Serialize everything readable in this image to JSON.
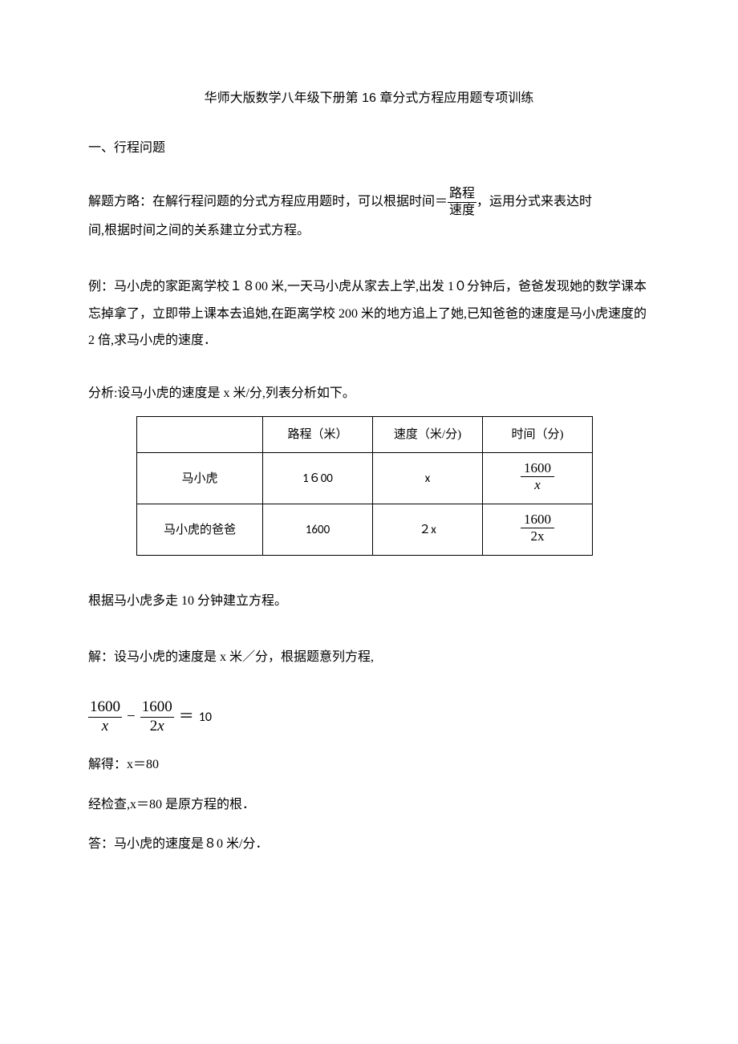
{
  "title": "华师大版数学八年级下册第 16 章分式方程应用题专项训练",
  "section": "一、行程问题",
  "strategy": {
    "lead": "解题方略：在解行程问题的分式方程应用题时，可以根据时间＝",
    "frac_num": "路程",
    "frac_den": "速度",
    "tail1": "，运用分式来表达时",
    "line2": "间,根据时间之间的关系建立分式方程。"
  },
  "example": "例：马小虎的家距离学校１８00 米,一天马小虎从家去上学,出发 1０分钟后，爸爸发现她的数学课本忘掉拿了，立即带上课本去追她,在距离学校 200 米的地方追上了她,已知爸爸的速度是马小虎速度的 2 倍,求马小虎的速度．",
  "analysis_intro": "分析:设马小虎的速度是 x 米/分,列表分析如下。",
  "table": {
    "headers": [
      "",
      "路程（米）",
      "速度（米/分)",
      "时间（分)"
    ],
    "rows": [
      {
        "name": "马小虎",
        "dist": "1６00",
        "speed": "x",
        "time_num": "1600",
        "time_den": "x"
      },
      {
        "name": "马小虎的爸爸",
        "dist": "1600",
        "speed": "２x",
        "time_num": "1600",
        "time_den": "2x"
      }
    ]
  },
  "after_table": "根据马小虎多走 10 分钟建立方程。",
  "solution_setup": "解：设马小虎的速度是 x 米／分，根据题意列方程,",
  "equation": {
    "t1_num": "1600",
    "t1_den": "x",
    "minus": "−",
    "t2_num": "1600",
    "t2_den": "2x",
    "eq": "＝",
    "rhs": "10"
  },
  "solve": "解得：x＝80",
  "check": "经检查,x＝80 是原方程的根．",
  "answer": "答：马小虎的速度是８0 米/分．"
}
